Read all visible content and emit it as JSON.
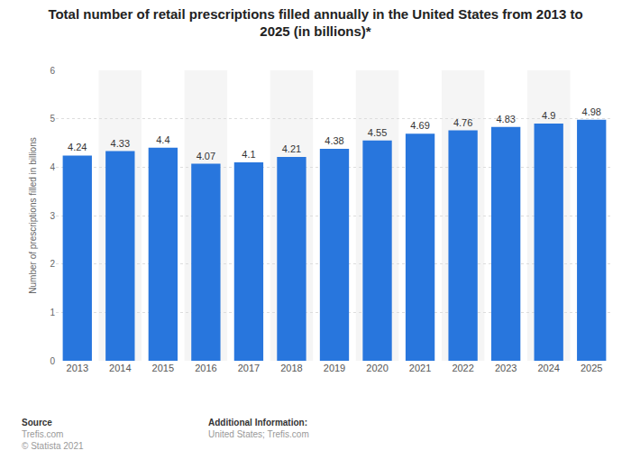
{
  "chart_data": {
    "type": "bar",
    "title": "Total number of retail prescriptions filled annually in the United States from 2013 to 2025 (in billions)*",
    "y_label": "Number of prescriptions filled in billions",
    "categories": [
      "2013",
      "2014",
      "2015",
      "2016",
      "2017",
      "2018",
      "2019",
      "2020",
      "2021",
      "2022",
      "2023",
      "2024",
      "2025"
    ],
    "values": [
      4.24,
      4.33,
      4.4,
      4.07,
      4.1,
      4.21,
      4.38,
      4.55,
      4.69,
      4.76,
      4.83,
      4.9,
      4.98
    ],
    "color": "#2876dd",
    "ylim": [
      0,
      6
    ],
    "yticks": [
      0,
      1,
      2,
      3,
      4,
      5,
      6
    ],
    "grid": true,
    "data_labels": true,
    "annotations": [
      "Source",
      "Trefis.com",
      "© Statista 2021",
      "Additional Information:",
      "United States; Trefis.com"
    ]
  }
}
